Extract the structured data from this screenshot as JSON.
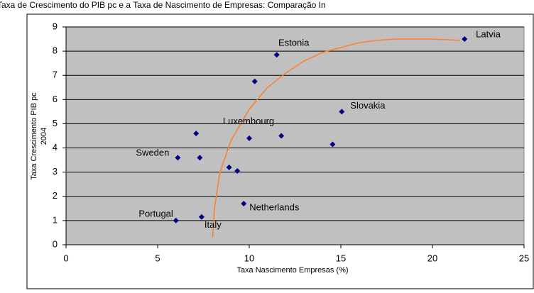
{
  "chart_data": {
    "type": "scatter",
    "title": "Taxa de Crescimento do PIB pc e a Taxa de Nascimento de Empresas: Comparação In",
    "xlabel": "Taxa Nascimento Empresas (%)",
    "ylabel": [
      "Taxa Crescimento PIB pc",
      "2004"
    ],
    "series": [
      {
        "color": "#000080",
        "x": [
          21.75,
          11.5,
          10.3,
          15.05,
          7.1,
          11.75,
          10.0,
          14.55,
          6.1,
          7.3,
          8.9,
          9.35,
          9.7,
          7.4,
          6.0
        ],
        "values": [
          8.5,
          7.85,
          6.75,
          5.5,
          4.6,
          4.5,
          4.4,
          4.15,
          3.6,
          3.6,
          3.2,
          3.05,
          1.7,
          1.15,
          1.0
        ],
        "labels": [
          "Latvia",
          "Estonia",
          null,
          "Slovakia",
          null,
          "Luxembourg",
          null,
          null,
          "Sweden",
          null,
          null,
          null,
          "Netherlands",
          "Italy",
          "Portugal"
        ]
      }
    ],
    "trend_line": {
      "color": "#ff7f27",
      "x": [
        8.0,
        8.1,
        8.4,
        9.0,
        10.0,
        11.0,
        12.0,
        13.0,
        14.0,
        15.0,
        16.0,
        17.0,
        18.0,
        20.0,
        21.5
      ],
      "values": [
        0.3,
        1.5,
        3.0,
        4.3,
        5.6,
        6.5,
        7.1,
        7.6,
        7.95,
        8.15,
        8.35,
        8.45,
        8.5,
        8.5,
        8.45
      ]
    },
    "xlim": [
      0,
      25
    ],
    "xticks": [
      0,
      5,
      10,
      15,
      20,
      25
    ],
    "ylim": [
      0,
      9
    ],
    "yticks": [
      0,
      1,
      2,
      3,
      4,
      5,
      6,
      7,
      8,
      9
    ],
    "grid": true,
    "plot_background": "#c0c0c0"
  }
}
